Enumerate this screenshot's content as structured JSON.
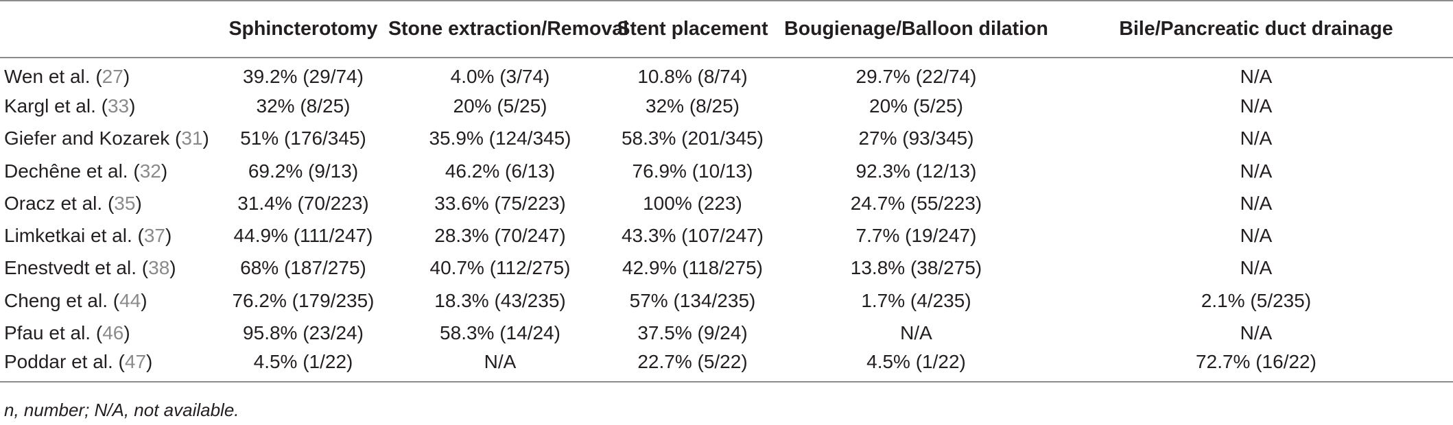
{
  "table": {
    "headers": [
      "",
      "Sphincterotomy",
      "Stone extraction/Removal",
      "Stent placement",
      "Bougienage/Balloon dilation",
      "Bile/Pancreatic duct drainage"
    ],
    "rows": [
      {
        "study": "Wen et al.",
        "ref": "27",
        "cells": [
          "39.2% (29/74)",
          "4.0% (3/74)",
          "10.8% (8/74)",
          "29.7% (22/74)",
          "N/A"
        ]
      },
      {
        "study": "Kargl et al.",
        "ref": "33",
        "cells": [
          "32% (8/25)",
          "20% (5/25)",
          "32% (8/25)",
          "20% (5/25)",
          "N/A"
        ]
      },
      {
        "study": "Giefer and Kozarek",
        "ref": "31",
        "cells": [
          "51% (176/345)",
          "35.9% (124/345)",
          "58.3% (201/345)",
          "27% (93/345)",
          "N/A"
        ]
      },
      {
        "study": "Dechêne et al.",
        "ref": "32",
        "cells": [
          "69.2% (9/13)",
          "46.2% (6/13)",
          "76.9% (10/13)",
          "92.3% (12/13)",
          "N/A"
        ]
      },
      {
        "study": "Oracz et al.",
        "ref": "35",
        "cells": [
          "31.4% (70/223)",
          "33.6% (75/223)",
          "100% (223)",
          "24.7% (55/223)",
          "N/A"
        ]
      },
      {
        "study": "Limketkai et al.",
        "ref": "37",
        "cells": [
          "44.9% (111/247)",
          "28.3% (70/247)",
          "43.3% (107/247)",
          "7.7% (19/247)",
          "N/A"
        ]
      },
      {
        "study": "Enestvedt et al.",
        "ref": "38",
        "cells": [
          "68% (187/275)",
          "40.7% (112/275)",
          "42.9% (118/275)",
          "13.8% (38/275)",
          "N/A"
        ]
      },
      {
        "study": "Cheng et al.",
        "ref": "44",
        "cells": [
          "76.2% (179/235)",
          "18.3% (43/235)",
          "57% (134/235)",
          "1.7% (4/235)",
          "2.1% (5/235)"
        ]
      },
      {
        "study": "Pfau et al.",
        "ref": "46",
        "cells": [
          "95.8% (23/24)",
          "58.3% (14/24)",
          "37.5% (9/24)",
          "N/A",
          "N/A"
        ]
      },
      {
        "study": "Poddar et al.",
        "ref": "47",
        "cells": [
          "4.5% (1/22)",
          "N/A",
          "22.7% (5/22)",
          "4.5% (1/22)",
          "72.7% (16/22)"
        ]
      }
    ]
  },
  "footnote": "n, number; N/A, not available."
}
